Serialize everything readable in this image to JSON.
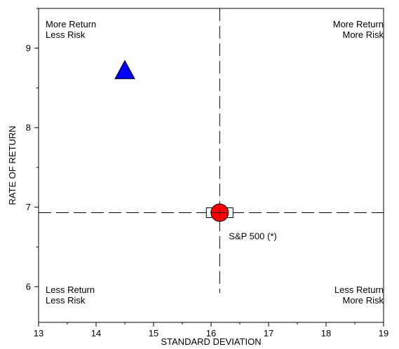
{
  "chart_data": {
    "type": "scatter",
    "title": "",
    "xlabel": "STANDARD DEVIATION",
    "ylabel": "RATE OF RETURN",
    "xlim": [
      13,
      19
    ],
    "ylim": [
      5.55,
      9.5
    ],
    "x_ticks": [
      13,
      14,
      15,
      16,
      17,
      18,
      19
    ],
    "y_ticks": [
      6,
      7,
      8,
      9
    ],
    "grid": false,
    "reference_lines": {
      "x": 16.15,
      "y": 6.93
    },
    "quadrant_labels": {
      "top_left": [
        "More Return",
        "Less Risk"
      ],
      "top_right": [
        "More Return",
        "More Risk"
      ],
      "bottom_left": [
        "Less Return",
        "Less Risk"
      ],
      "bottom_right": [
        "Less Return",
        "More Risk"
      ]
    },
    "points": [
      {
        "label": "",
        "x": 14.5,
        "y": 8.72,
        "marker": "triangle",
        "color": "#0000ff"
      },
      {
        "label": "S&P 500 (*)",
        "x": 16.15,
        "y": 6.93,
        "marker": "circle",
        "color": "#ff0000"
      }
    ]
  }
}
